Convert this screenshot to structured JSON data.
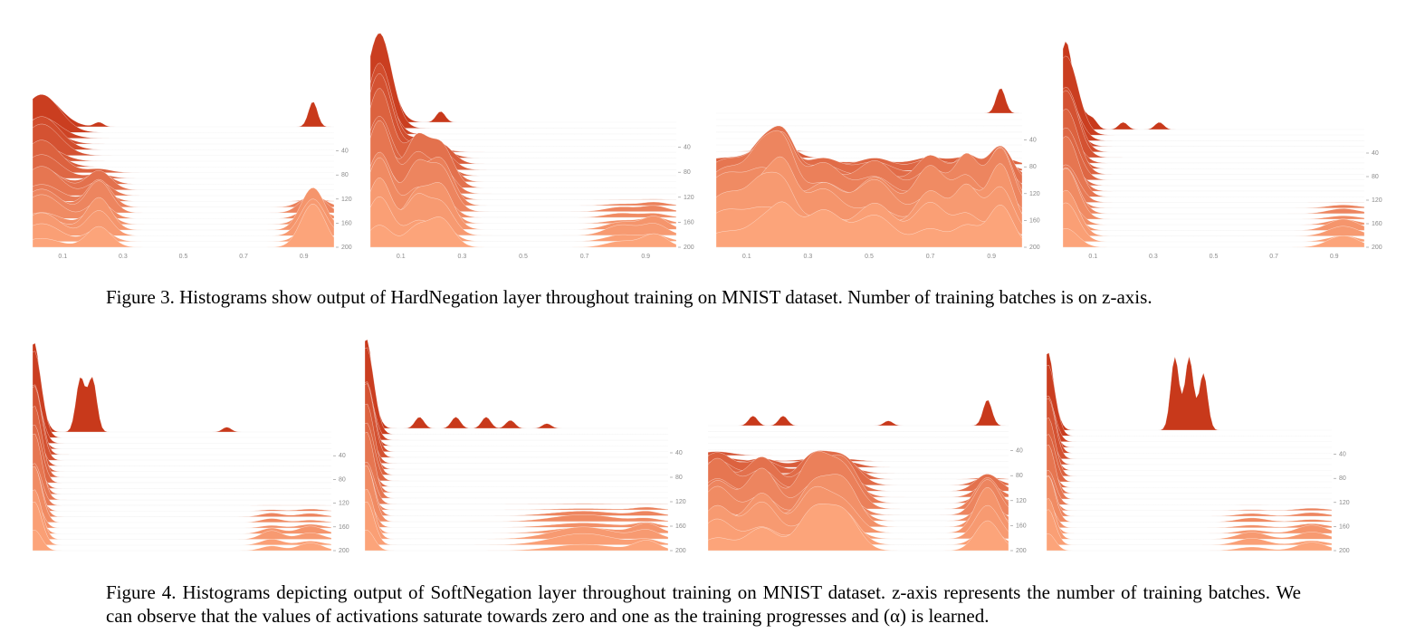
{
  "figure3": {
    "caption": "Figure 3. Histograms show output of HardNegation layer throughout training on MNIST dataset. Number of training batches is on z-axis."
  },
  "figure4": {
    "caption": "Figure 4. Histograms depicting output of SoftNegation layer throughout training on MNIST dataset.  z-axis represents the number of training batches. We can observe that the values of activations saturate towards zero and one as the training progresses and (α) is learned."
  },
  "colors": {
    "oldest": "#c8391b",
    "newest": "#fca47a",
    "grid": "#e6e6e6",
    "tick": "#8a8a8a"
  },
  "chart_data": [
    {
      "type": "area",
      "figure": "Figure 3",
      "panel": 1,
      "x_ticks": [
        "0.1",
        "0.3",
        "0.5",
        "0.7",
        "0.9"
      ],
      "z_ticks": [
        "40",
        "80",
        "120",
        "160",
        "200"
      ],
      "xlim": [
        0,
        1
      ],
      "peaks": [
        [
          0.03,
          0.06,
          2.2,
          0.0
        ],
        [
          0.22,
          0.04,
          3.0,
          0.6
        ],
        [
          0.93,
          0.04,
          6.0,
          1.0
        ]
      ],
      "top_slice_boost": [
        [
          0.22,
          0.25
        ],
        [
          0.93,
          1.4
        ]
      ]
    },
    {
      "type": "area",
      "figure": "Figure 3",
      "panel": 2,
      "x_ticks": [
        "0.1",
        "0.3",
        "0.5",
        "0.7",
        "0.9"
      ],
      "z_ticks": [
        "40",
        "80",
        "120",
        "160",
        "200"
      ],
      "xlim": [
        0,
        1
      ],
      "peaks": [
        [
          0.03,
          0.04,
          5.5,
          0.0
        ],
        [
          0.15,
          0.035,
          3.6,
          0.3
        ],
        [
          0.23,
          0.04,
          4.0,
          0.4
        ],
        [
          0.82,
          0.05,
          1.3,
          1.0
        ],
        [
          0.93,
          0.04,
          1.8,
          1.0
        ]
      ],
      "top_slice_boost": [
        [
          0.03,
          0.6
        ],
        [
          0.23,
          0.6
        ]
      ]
    },
    {
      "type": "area",
      "figure": "Figure 3",
      "panel": 3,
      "x_ticks": [
        "0.1",
        "0.3",
        "0.5",
        "0.7",
        "0.9"
      ],
      "z_ticks": [
        "40",
        "80",
        "120",
        "160",
        "200"
      ],
      "xlim": [
        0,
        1
      ],
      "peaks": [
        [
          0.04,
          0.08,
          4.0,
          0.6
        ],
        [
          0.15,
          0.04,
          3.4,
          0.5
        ],
        [
          0.22,
          0.04,
          5.3,
          0.5
        ],
        [
          0.35,
          0.06,
          3.8,
          0.6
        ],
        [
          0.52,
          0.06,
          3.8,
          0.6
        ],
        [
          0.7,
          0.05,
          4.3,
          0.6
        ],
        [
          0.82,
          0.04,
          4.5,
          0.6
        ],
        [
          0.93,
          0.04,
          5.8,
          0.6
        ]
      ],
      "top_slice_boost": [
        [
          0.93,
          1.4
        ]
      ]
    },
    {
      "type": "area",
      "figure": "Figure 3",
      "panel": 4,
      "x_ticks": [
        "0.1",
        "0.3",
        "0.5",
        "0.7",
        "0.9"
      ],
      "z_ticks": [
        "40",
        "80",
        "120",
        "160",
        "200"
      ],
      "xlim": [
        0,
        1
      ],
      "peaks": [
        [
          0.01,
          0.04,
          4.5,
          0.0
        ],
        [
          0.93,
          0.05,
          1.6,
          1.0
        ]
      ],
      "top_slice_boost": [
        [
          0.01,
          1.6
        ],
        [
          0.1,
          0.4
        ],
        [
          0.2,
          0.4
        ],
        [
          0.32,
          0.4
        ]
      ]
    },
    {
      "type": "area",
      "figure": "Figure 4",
      "panel": 1,
      "x_ticks": [
        "0.1",
        "0.3",
        "0.5",
        "0.7",
        "0.9"
      ],
      "z_ticks": [
        "40",
        "80",
        "120",
        "160",
        "200"
      ],
      "xlim": [
        0,
        1
      ],
      "peaks": [
        [
          0.005,
          0.025,
          5.5,
          0.0
        ],
        [
          0.8,
          0.035,
          1.2,
          1.0
        ],
        [
          0.93,
          0.04,
          1.2,
          1.0
        ]
      ],
      "top_slice_boost": [
        [
          0.005,
          1.6
        ],
        [
          0.16,
          3.3
        ],
        [
          0.2,
          3.3
        ],
        [
          0.65,
          0.3
        ]
      ]
    },
    {
      "type": "area",
      "figure": "Figure 4",
      "panel": 2,
      "x_ticks": [
        "0.1",
        "0.3",
        "0.5",
        "0.7",
        "0.9"
      ],
      "z_ticks": [
        "40",
        "80",
        "120",
        "160",
        "200"
      ],
      "xlim": [
        0,
        1
      ],
      "peaks": [
        [
          0.005,
          0.025,
          5.5,
          0.0
        ],
        [
          0.72,
          0.1,
          1.7,
          1.0
        ],
        [
          0.93,
          0.04,
          1.5,
          1.0
        ]
      ],
      "top_slice_boost": [
        [
          0.005,
          1.6
        ],
        [
          0.18,
          0.7
        ],
        [
          0.3,
          0.7
        ],
        [
          0.4,
          0.7
        ],
        [
          0.48,
          0.5
        ],
        [
          0.6,
          0.3
        ]
      ]
    },
    {
      "type": "area",
      "figure": "Figure 4",
      "panel": 3,
      "x_ticks": [
        "0.1",
        "0.3",
        "0.5",
        "0.7",
        "0.9"
      ],
      "z_ticks": [
        "40",
        "80",
        "120",
        "160",
        "200"
      ],
      "xlim": [
        0,
        1
      ],
      "peaks": [
        [
          0.03,
          0.05,
          3.5,
          0.4
        ],
        [
          0.18,
          0.05,
          4.3,
          0.5
        ],
        [
          0.35,
          0.05,
          4.5,
          0.5
        ],
        [
          0.45,
          0.05,
          4.3,
          0.5
        ],
        [
          0.93,
          0.04,
          4.6,
          0.7
        ]
      ],
      "top_slice_boost": [
        [
          0.93,
          1.6
        ],
        [
          0.15,
          0.6
        ],
        [
          0.25,
          0.6
        ],
        [
          0.6,
          0.3
        ]
      ]
    },
    {
      "type": "area",
      "figure": "Figure 4",
      "panel": 4,
      "x_ticks": [
        "0.1",
        "0.3",
        "0.5",
        "0.7",
        "0.9"
      ],
      "z_ticks": [
        "40",
        "80",
        "120",
        "160",
        "200"
      ],
      "xlim": [
        0,
        1
      ],
      "peaks": [
        [
          0.005,
          0.025,
          4.5,
          0.0
        ],
        [
          0.72,
          0.05,
          1.0,
          1.0
        ],
        [
          0.93,
          0.05,
          1.3,
          1.0
        ]
      ],
      "top_slice_boost": [
        [
          0.005,
          1.6
        ],
        [
          0.45,
          4.5
        ],
        [
          0.5,
          4.5
        ],
        [
          0.55,
          3.5
        ]
      ]
    }
  ]
}
